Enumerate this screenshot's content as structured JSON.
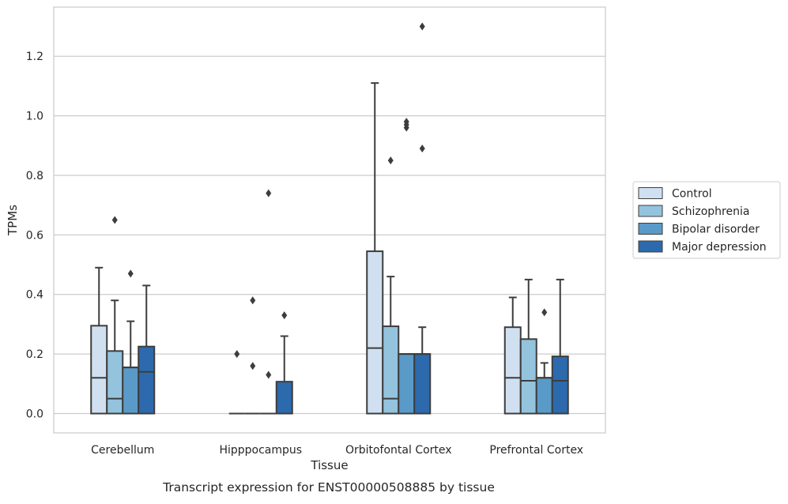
{
  "caption": "Transcript expression for ENST00000508885 by tissue",
  "chart_data": {
    "type": "box",
    "title": "",
    "xlabel": "Tissue",
    "ylabel": "TPMs",
    "ylim": [
      -0.065,
      1.365
    ],
    "yticks": [
      0.0,
      0.2,
      0.4,
      0.6,
      0.8,
      1.0,
      1.2
    ],
    "ytick_labels": [
      "0.0",
      "0.2",
      "0.4",
      "0.6",
      "0.8",
      "1.0",
      "1.2"
    ],
    "grid": "horizontal",
    "legend_position": "outside-right",
    "categories": [
      "Cerebellum",
      "Hipppocampus",
      "Orbitofontal Cortex",
      "Prefrontal Cortex"
    ],
    "series": [
      {
        "name": "Control",
        "color": "#d0e0f0",
        "boxes": [
          {
            "q1": 0.0,
            "median": 0.12,
            "q3": 0.295,
            "whisker_low": 0.0,
            "whisker_high": 0.49,
            "outliers": []
          },
          {
            "q1": 0.0,
            "median": 0.0,
            "q3": 0.0,
            "whisker_low": 0.0,
            "whisker_high": 0.0,
            "outliers": [
              0.2
            ]
          },
          {
            "q1": 0.0,
            "median": 0.22,
            "q3": 0.545,
            "whisker_low": 0.0,
            "whisker_high": 1.11,
            "outliers": []
          },
          {
            "q1": 0.0,
            "median": 0.12,
            "q3": 0.29,
            "whisker_low": 0.0,
            "whisker_high": 0.39,
            "outliers": []
          }
        ]
      },
      {
        "name": "Schizophrenia",
        "color": "#94c3de",
        "boxes": [
          {
            "q1": 0.0,
            "median": 0.05,
            "q3": 0.21,
            "whisker_low": 0.0,
            "whisker_high": 0.38,
            "outliers": [
              0.65
            ]
          },
          {
            "q1": 0.0,
            "median": 0.0,
            "q3": 0.0,
            "whisker_low": 0.0,
            "whisker_high": 0.0,
            "outliers": [
              0.16,
              0.38
            ]
          },
          {
            "q1": 0.0,
            "median": 0.05,
            "q3": 0.293,
            "whisker_low": 0.0,
            "whisker_high": 0.46,
            "outliers": [
              0.85
            ]
          },
          {
            "q1": 0.0,
            "median": 0.11,
            "q3": 0.25,
            "whisker_low": 0.0,
            "whisker_high": 0.45,
            "outliers": []
          }
        ]
      },
      {
        "name": "Bipolar disorder",
        "color": "#5a9ac9",
        "boxes": [
          {
            "q1": 0.0,
            "median": 0.155,
            "q3": 0.155,
            "whisker_low": 0.0,
            "whisker_high": 0.31,
            "outliers": [
              0.47
            ]
          },
          {
            "q1": 0.0,
            "median": 0.0,
            "q3": 0.0,
            "whisker_low": 0.0,
            "whisker_high": 0.0,
            "outliers": [
              0.13,
              0.74
            ]
          },
          {
            "q1": 0.0,
            "median": 0.2,
            "q3": 0.2,
            "whisker_low": 0.0,
            "whisker_high": 0.2,
            "outliers": [
              0.96,
              0.97,
              0.98
            ]
          },
          {
            "q1": 0.0,
            "median": 0.12,
            "q3": 0.12,
            "whisker_low": 0.0,
            "whisker_high": 0.17,
            "outliers": [
              0.34
            ]
          }
        ]
      },
      {
        "name": "Major depression",
        "color": "#2c6aad",
        "boxes": [
          {
            "q1": 0.0,
            "median": 0.14,
            "q3": 0.225,
            "whisker_low": 0.0,
            "whisker_high": 0.43,
            "outliers": []
          },
          {
            "q1": 0.0,
            "median": 0.0,
            "q3": 0.107,
            "whisker_low": 0.0,
            "whisker_high": 0.26,
            "outliers": [
              0.33
            ]
          },
          {
            "q1": 0.0,
            "median": 0.2,
            "q3": 0.2,
            "whisker_low": 0.0,
            "whisker_high": 0.29,
            "outliers": [
              0.89,
              1.3
            ]
          },
          {
            "q1": 0.0,
            "median": 0.11,
            "q3": 0.192,
            "whisker_low": 0.0,
            "whisker_high": 0.45,
            "outliers": []
          }
        ]
      }
    ]
  }
}
